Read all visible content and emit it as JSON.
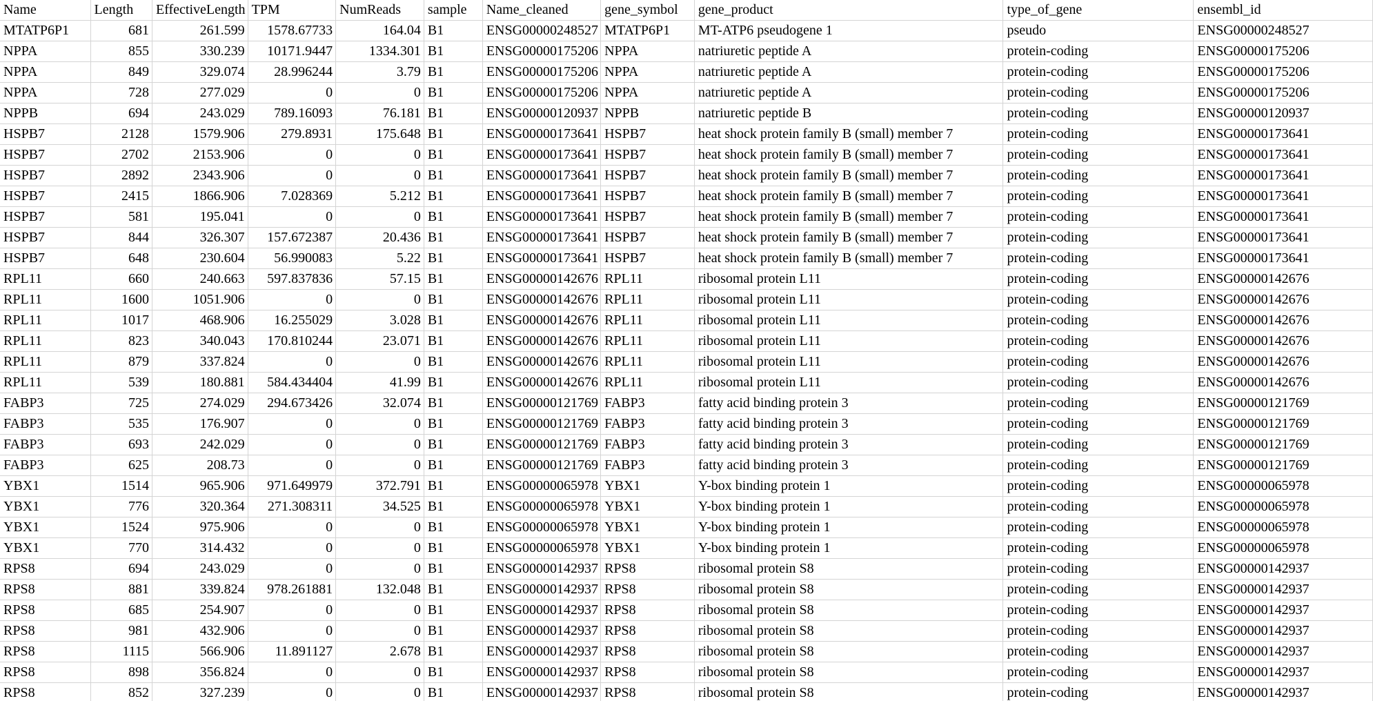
{
  "grid": {
    "columns": [
      "Name",
      "Length",
      "EffectiveLength",
      "TPM",
      "NumReads",
      "sample",
      "Name_cleaned",
      "gene_symbol",
      "gene_product",
      "type_of_gene",
      "ensembl_id"
    ],
    "numeric_columns": [
      1,
      2,
      3,
      4
    ],
    "rows": [
      [
        "MTATP6P1",
        "681",
        "261.599",
        "1578.67733",
        "164.04",
        "B1",
        "ENSG00000248527",
        "MTATP6P1",
        "MT-ATP6 pseudogene 1",
        "pseudo",
        "ENSG00000248527"
      ],
      [
        "NPPA",
        "855",
        "330.239",
        "10171.9447",
        "1334.301",
        "B1",
        "ENSG00000175206",
        "NPPA",
        "natriuretic peptide A",
        "protein-coding",
        "ENSG00000175206"
      ],
      [
        "NPPA",
        "849",
        "329.074",
        "28.996244",
        "3.79",
        "B1",
        "ENSG00000175206",
        "NPPA",
        "natriuretic peptide A",
        "protein-coding",
        "ENSG00000175206"
      ],
      [
        "NPPA",
        "728",
        "277.029",
        "0",
        "0",
        "B1",
        "ENSG00000175206",
        "NPPA",
        "natriuretic peptide A",
        "protein-coding",
        "ENSG00000175206"
      ],
      [
        "NPPB",
        "694",
        "243.029",
        "789.16093",
        "76.181",
        "B1",
        "ENSG00000120937",
        "NPPB",
        "natriuretic peptide B",
        "protein-coding",
        "ENSG00000120937"
      ],
      [
        "HSPB7",
        "2128",
        "1579.906",
        "279.8931",
        "175.648",
        "B1",
        "ENSG00000173641",
        "HSPB7",
        "heat shock protein family B (small) member 7",
        "protein-coding",
        "ENSG00000173641"
      ],
      [
        "HSPB7",
        "2702",
        "2153.906",
        "0",
        "0",
        "B1",
        "ENSG00000173641",
        "HSPB7",
        "heat shock protein family B (small) member 7",
        "protein-coding",
        "ENSG00000173641"
      ],
      [
        "HSPB7",
        "2892",
        "2343.906",
        "0",
        "0",
        "B1",
        "ENSG00000173641",
        "HSPB7",
        "heat shock protein family B (small) member 7",
        "protein-coding",
        "ENSG00000173641"
      ],
      [
        "HSPB7",
        "2415",
        "1866.906",
        "7.028369",
        "5.212",
        "B1",
        "ENSG00000173641",
        "HSPB7",
        "heat shock protein family B (small) member 7",
        "protein-coding",
        "ENSG00000173641"
      ],
      [
        "HSPB7",
        "581",
        "195.041",
        "0",
        "0",
        "B1",
        "ENSG00000173641",
        "HSPB7",
        "heat shock protein family B (small) member 7",
        "protein-coding",
        "ENSG00000173641"
      ],
      [
        "HSPB7",
        "844",
        "326.307",
        "157.672387",
        "20.436",
        "B1",
        "ENSG00000173641",
        "HSPB7",
        "heat shock protein family B (small) member 7",
        "protein-coding",
        "ENSG00000173641"
      ],
      [
        "HSPB7",
        "648",
        "230.604",
        "56.990083",
        "5.22",
        "B1",
        "ENSG00000173641",
        "HSPB7",
        "heat shock protein family B (small) member 7",
        "protein-coding",
        "ENSG00000173641"
      ],
      [
        "RPL11",
        "660",
        "240.663",
        "597.837836",
        "57.15",
        "B1",
        "ENSG00000142676",
        "RPL11",
        "ribosomal protein L11",
        "protein-coding",
        "ENSG00000142676"
      ],
      [
        "RPL11",
        "1600",
        "1051.906",
        "0",
        "0",
        "B1",
        "ENSG00000142676",
        "RPL11",
        "ribosomal protein L11",
        "protein-coding",
        "ENSG00000142676"
      ],
      [
        "RPL11",
        "1017",
        "468.906",
        "16.255029",
        "3.028",
        "B1",
        "ENSG00000142676",
        "RPL11",
        "ribosomal protein L11",
        "protein-coding",
        "ENSG00000142676"
      ],
      [
        "RPL11",
        "823",
        "340.043",
        "170.810244",
        "23.071",
        "B1",
        "ENSG00000142676",
        "RPL11",
        "ribosomal protein L11",
        "protein-coding",
        "ENSG00000142676"
      ],
      [
        "RPL11",
        "879",
        "337.824",
        "0",
        "0",
        "B1",
        "ENSG00000142676",
        "RPL11",
        "ribosomal protein L11",
        "protein-coding",
        "ENSG00000142676"
      ],
      [
        "RPL11",
        "539",
        "180.881",
        "584.434404",
        "41.99",
        "B1",
        "ENSG00000142676",
        "RPL11",
        "ribosomal protein L11",
        "protein-coding",
        "ENSG00000142676"
      ],
      [
        "FABP3",
        "725",
        "274.029",
        "294.673426",
        "32.074",
        "B1",
        "ENSG00000121769",
        "FABP3",
        "fatty acid binding protein 3",
        "protein-coding",
        "ENSG00000121769"
      ],
      [
        "FABP3",
        "535",
        "176.907",
        "0",
        "0",
        "B1",
        "ENSG00000121769",
        "FABP3",
        "fatty acid binding protein 3",
        "protein-coding",
        "ENSG00000121769"
      ],
      [
        "FABP3",
        "693",
        "242.029",
        "0",
        "0",
        "B1",
        "ENSG00000121769",
        "FABP3",
        "fatty acid binding protein 3",
        "protein-coding",
        "ENSG00000121769"
      ],
      [
        "FABP3",
        "625",
        "208.73",
        "0",
        "0",
        "B1",
        "ENSG00000121769",
        "FABP3",
        "fatty acid binding protein 3",
        "protein-coding",
        "ENSG00000121769"
      ],
      [
        "YBX1",
        "1514",
        "965.906",
        "971.649979",
        "372.791",
        "B1",
        "ENSG00000065978",
        "YBX1",
        "Y-box binding protein 1",
        "protein-coding",
        "ENSG00000065978"
      ],
      [
        "YBX1",
        "776",
        "320.364",
        "271.308311",
        "34.525",
        "B1",
        "ENSG00000065978",
        "YBX1",
        "Y-box binding protein 1",
        "protein-coding",
        "ENSG00000065978"
      ],
      [
        "YBX1",
        "1524",
        "975.906",
        "0",
        "0",
        "B1",
        "ENSG00000065978",
        "YBX1",
        "Y-box binding protein 1",
        "protein-coding",
        "ENSG00000065978"
      ],
      [
        "YBX1",
        "770",
        "314.432",
        "0",
        "0",
        "B1",
        "ENSG00000065978",
        "YBX1",
        "Y-box binding protein 1",
        "protein-coding",
        "ENSG00000065978"
      ],
      [
        "RPS8",
        "694",
        "243.029",
        "0",
        "0",
        "B1",
        "ENSG00000142937",
        "RPS8",
        "ribosomal protein S8",
        "protein-coding",
        "ENSG00000142937"
      ],
      [
        "RPS8",
        "881",
        "339.824",
        "978.261881",
        "132.048",
        "B1",
        "ENSG00000142937",
        "RPS8",
        "ribosomal protein S8",
        "protein-coding",
        "ENSG00000142937"
      ],
      [
        "RPS8",
        "685",
        "254.907",
        "0",
        "0",
        "B1",
        "ENSG00000142937",
        "RPS8",
        "ribosomal protein S8",
        "protein-coding",
        "ENSG00000142937"
      ],
      [
        "RPS8",
        "981",
        "432.906",
        "0",
        "0",
        "B1",
        "ENSG00000142937",
        "RPS8",
        "ribosomal protein S8",
        "protein-coding",
        "ENSG00000142937"
      ],
      [
        "RPS8",
        "1115",
        "566.906",
        "11.891127",
        "2.678",
        "B1",
        "ENSG00000142937",
        "RPS8",
        "ribosomal protein S8",
        "protein-coding",
        "ENSG00000142937"
      ],
      [
        "RPS8",
        "898",
        "356.824",
        "0",
        "0",
        "B1",
        "ENSG00000142937",
        "RPS8",
        "ribosomal protein S8",
        "protein-coding",
        "ENSG00000142937"
      ],
      [
        "RPS8",
        "852",
        "327.239",
        "0",
        "0",
        "B1",
        "ENSG00000142937",
        "RPS8",
        "ribosomal protein S8",
        "protein-coding",
        "ENSG00000142937"
      ]
    ]
  }
}
